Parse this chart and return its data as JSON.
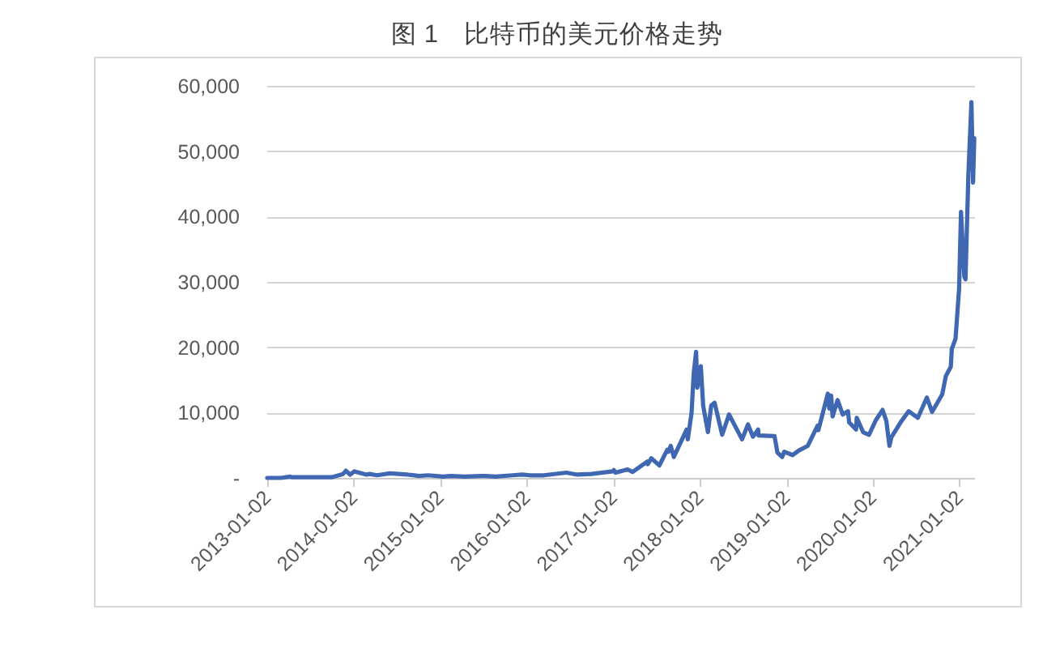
{
  "chart_data": {
    "type": "line",
    "title": "图 1　比特币的美元价格走势",
    "x": [
      "2013-01-02",
      "2013-03-01",
      "2013-04-09",
      "2013-04-16",
      "2013-07-05",
      "2013-10-01",
      "2013-11-18",
      "2013-11-30",
      "2013-12-18",
      "2014-01-05",
      "2014-02-25",
      "2014-03-10",
      "2014-04-10",
      "2014-06-03",
      "2014-08-18",
      "2014-10-05",
      "2014-11-12",
      "2015-01-14",
      "2015-02-15",
      "2015-04-14",
      "2015-06-30",
      "2015-07-12",
      "2015-08-24",
      "2015-11-04",
      "2015-12-15",
      "2016-01-15",
      "2016-03-15",
      "2016-06-17",
      "2016-08-02",
      "2016-10-01",
      "2016-12-31",
      "2017-01-04",
      "2017-01-11",
      "2017-03-03",
      "2017-03-24",
      "2017-05-25",
      "2017-05-27",
      "2017-06-11",
      "2017-07-15",
      "2017-08-17",
      "2017-08-22",
      "2017-09-01",
      "2017-09-14",
      "2017-10-20",
      "2017-11-07",
      "2017-11-12",
      "2017-11-28",
      "2017-12-07",
      "2017-12-17",
      "2017-12-22",
      "2018-01-06",
      "2018-01-16",
      "2018-02-05",
      "2018-02-19",
      "2018-03-05",
      "2018-04-06",
      "2018-05-05",
      "2018-06-29",
      "2018-07-24",
      "2018-08-14",
      "2018-09-05",
      "2018-09-06",
      "2018-11-13",
      "2018-11-25",
      "2018-12-15",
      "2018-12-24",
      "2019-01-28",
      "2019-02-24",
      "2019-04-02",
      "2019-05-14",
      "2019-05-17",
      "2019-06-26",
      "2019-07-02",
      "2019-07-10",
      "2019-07-16",
      "2019-08-06",
      "2019-08-28",
      "2019-09-19",
      "2019-09-24",
      "2019-10-23",
      "2019-10-26",
      "2019-11-22",
      "2019-12-17",
      "2020-01-14",
      "2020-02-12",
      "2020-02-28",
      "2020-03-12",
      "2020-03-20",
      "2020-04-30",
      "2020-06-01",
      "2020-07-10",
      "2020-08-17",
      "2020-09-08",
      "2020-10-21",
      "2020-11-05",
      "2020-11-26",
      "2020-11-30",
      "2020-12-16",
      "2020-12-31",
      "2021-01-08",
      "2021-01-22",
      "2021-01-27",
      "2021-02-08",
      "2021-02-21",
      "2021-02-28",
      "2021-03-05"
    ],
    "series": [
      {
        "color": "#4068b2",
        "values": [
          0,
          0,
          200,
          100,
          100,
          100,
          600,
          1100,
          500,
          1000,
          500,
          600,
          400,
          700,
          500,
          300,
          400,
          200,
          300,
          200,
          300,
          300,
          200,
          400,
          500,
          400,
          400,
          800,
          500,
          600,
          1000,
          1200,
          800,
          1300,
          900,
          2500,
          2100,
          3000,
          1900,
          4300,
          4000,
          4900,
          3200,
          6000,
          7400,
          5900,
          10000,
          16000,
          19300,
          13800,
          17100,
          11000,
          7000,
          11100,
          11500,
          6600,
          9700,
          5900,
          8200,
          6300,
          7400,
          6500,
          6400,
          3900,
          3200,
          4000,
          3500,
          4200,
          4900,
          8000,
          7300,
          12900,
          10600,
          12600,
          9400,
          11900,
          9700,
          10200,
          8500,
          7400,
          9200,
          7000,
          6600,
          8800,
          10400,
          8700,
          4900,
          6200,
          8600,
          10200,
          9200,
          12300,
          10100,
          12800,
          15600,
          17000,
          19700,
          21300,
          29000,
          40700,
          30800,
          30400,
          46300,
          57500,
          45200,
          52000
        ]
      }
    ],
    "xlim": [
      "2013-01-02",
      "2021-03-08"
    ],
    "xticks": [
      "2013-01-02",
      "2014-01-02",
      "2015-01-02",
      "2016-01-02",
      "2017-01-02",
      "2018-01-02",
      "2019-01-02",
      "2020-01-02",
      "2021-01-02"
    ],
    "ylim": [
      0,
      60000
    ],
    "yticks": [
      {
        "value": 0,
        "label": "-"
      },
      {
        "value": 10000,
        "label": "10,000"
      },
      {
        "value": 20000,
        "label": "20,000"
      },
      {
        "value": 30000,
        "label": "30,000"
      },
      {
        "value": 40000,
        "label": "40,000"
      },
      {
        "value": 50000,
        "label": "50,000"
      },
      {
        "value": 60000,
        "label": "60,000"
      }
    ],
    "grid": "y",
    "line_style": "solid"
  }
}
